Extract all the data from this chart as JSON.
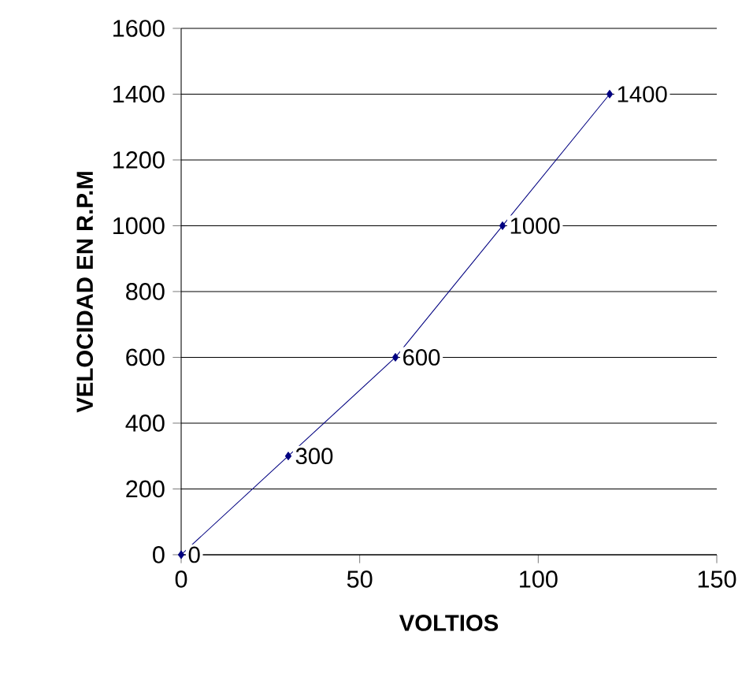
{
  "chart_data": {
    "type": "line",
    "xlabel": "VOLTIOS",
    "ylabel": "VELOCIDAD EN R.P.M",
    "x": [
      0,
      30,
      60,
      90,
      120
    ],
    "values": [
      0,
      300,
      600,
      1000,
      1400
    ],
    "color": "#000080",
    "marker": "diamond",
    "data_labels": true,
    "grid": "y",
    "xlim": [
      0,
      150
    ],
    "xticks": [
      0,
      50,
      100,
      150
    ],
    "ylim": [
      0,
      1600
    ],
    "yticks": [
      0,
      200,
      400,
      600,
      800,
      1000,
      1200,
      1400,
      1600
    ]
  }
}
